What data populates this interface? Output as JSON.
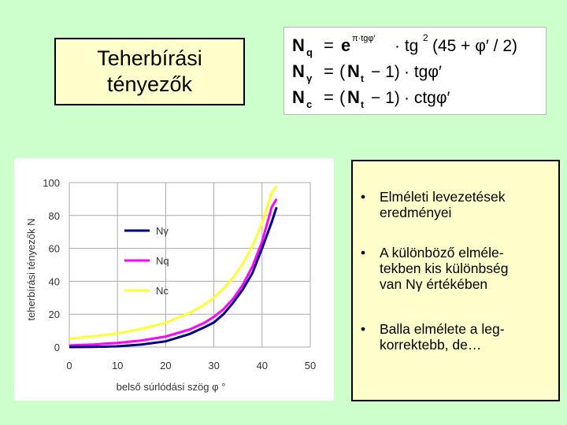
{
  "title": "Teherbírási\ntényezők",
  "formulas": {
    "nq": {
      "lhs": "N",
      "sub": "q",
      "eq": "=",
      "e": "e",
      "exp": "π·tgφ′",
      "rest": "· tg",
      "sq": "2",
      "paren": "(45 + φ′ / 2)"
    },
    "ngamma": {
      "lhs": "N",
      "sub": "γ",
      "eq": "=",
      "open": "(",
      "nt": "N",
      "ntsub": "t",
      "minus": "− 1)",
      "rest": "· tgφ′"
    },
    "nc": {
      "lhs": "N",
      "sub": "c",
      "eq": "=",
      "open": "(",
      "nt": "N",
      "ntsub": "t",
      "minus": "− 1)",
      "rest": "· ctgφ′"
    }
  },
  "chart_data": {
    "type": "line",
    "title": "",
    "xlabel": "belső súrlódási szög  φ °",
    "ylabel": "teherbírási tényezők   N",
    "xlim": [
      0,
      50
    ],
    "ylim": [
      0,
      100
    ],
    "xticks": [
      0,
      10,
      20,
      30,
      40,
      50
    ],
    "yticks": [
      0,
      20,
      40,
      60,
      80,
      100
    ],
    "grid": true,
    "legend_position": "upper-left",
    "series": [
      {
        "name": "Nγ",
        "color": "#000080",
        "x": [
          0,
          5,
          10,
          15,
          20,
          25,
          28,
          30,
          32,
          34,
          36,
          38,
          40,
          42,
          43
        ],
        "y": [
          0,
          0.1,
          0.5,
          1.6,
          3.5,
          8,
          12,
          15,
          20,
          27,
          35,
          45,
          60,
          76,
          85
        ]
      },
      {
        "name": "Nq",
        "color": "#ff00ff",
        "x": [
          0,
          5,
          10,
          15,
          20,
          25,
          28,
          30,
          32,
          34,
          36,
          38,
          40,
          42,
          43
        ],
        "y": [
          1,
          1.6,
          2.5,
          4,
          6.4,
          10.7,
          14.7,
          18.4,
          23,
          29.4,
          37.8,
          49,
          64,
          85,
          90
        ]
      },
      {
        "name": "Nc",
        "color": "#ffff33",
        "x": [
          0,
          5,
          10,
          15,
          20,
          25,
          28,
          30,
          32,
          34,
          36,
          38,
          40,
          42,
          43
        ],
        "y": [
          5.1,
          6.5,
          8.3,
          11,
          14.8,
          20.7,
          25.8,
          30,
          35.5,
          42.2,
          50.6,
          61.4,
          75.3,
          93.7,
          98
        ]
      }
    ]
  },
  "bullets": [
    {
      "symbol": "•",
      "text": "Elméleti levezetések\neredményei"
    },
    {
      "symbol": "•",
      "text": "A különböző elméle-\ntekben kis különbség\nvan Nγ értékében"
    },
    {
      "symbol": "•",
      "text": "Balla elmélete a leg-\nkorrektebb, de…"
    }
  ]
}
